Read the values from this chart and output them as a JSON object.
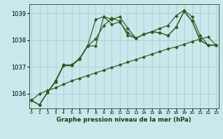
{
  "title": "Graphe pression niveau de la mer (hPa)",
  "bg_color": "#c8e8ec",
  "grid_color": "#a8cdd4",
  "line_color": "#2d5a1e",
  "xlim": [
    -0.3,
    23.3
  ],
  "ylim": [
    1035.45,
    1039.35
  ],
  "yticks": [
    1036,
    1037,
    1038,
    1039
  ],
  "xtick_labels": [
    "0",
    "1",
    "2",
    "3",
    "4",
    "5",
    "6",
    "7",
    "8",
    "9",
    "10",
    "11",
    "12",
    "13",
    "14",
    "15",
    "16",
    "17",
    "18",
    "19",
    "20",
    "21",
    "22",
    "23"
  ],
  "series": [
    [
      1035.75,
      1035.58,
      1036.05,
      1036.45,
      1037.05,
      1037.05,
      1037.3,
      1037.78,
      1038.78,
      1038.88,
      1038.6,
      1038.68,
      1038.28,
      1038.08,
      1038.22,
      1038.32,
      1038.28,
      1038.18,
      1038.48,
      1039.08,
      1038.72,
      1038.0,
      1037.82,
      1037.82
    ],
    [
      1035.75,
      1035.58,
      1036.05,
      1036.45,
      1037.05,
      1037.05,
      1037.3,
      1037.78,
      1038.05,
      1038.55,
      1038.82,
      1038.72,
      1038.18,
      1038.08,
      1038.22,
      1038.32,
      1038.28,
      1038.18,
      1038.48,
      1039.08,
      1038.72,
      1038.0,
      1037.82,
      1037.82
    ],
    [
      1035.75,
      1035.58,
      1036.05,
      1036.48,
      1037.08,
      1037.08,
      1037.32,
      1037.8,
      1037.78,
      1038.88,
      1038.78,
      1038.88,
      1038.45,
      1038.08,
      1038.22,
      1038.32,
      1038.45,
      1038.55,
      1038.92,
      1039.12,
      1038.88,
      1038.18,
      1037.82,
      1037.82
    ],
    [
      1035.75,
      1036.0,
      1036.12,
      1036.22,
      1036.35,
      1036.48,
      1036.58,
      1036.68,
      1036.78,
      1036.88,
      1036.98,
      1037.08,
      1037.18,
      1037.28,
      1037.38,
      1037.48,
      1037.58,
      1037.68,
      1037.75,
      1037.85,
      1037.95,
      1038.05,
      1038.12,
      1037.82
    ]
  ]
}
